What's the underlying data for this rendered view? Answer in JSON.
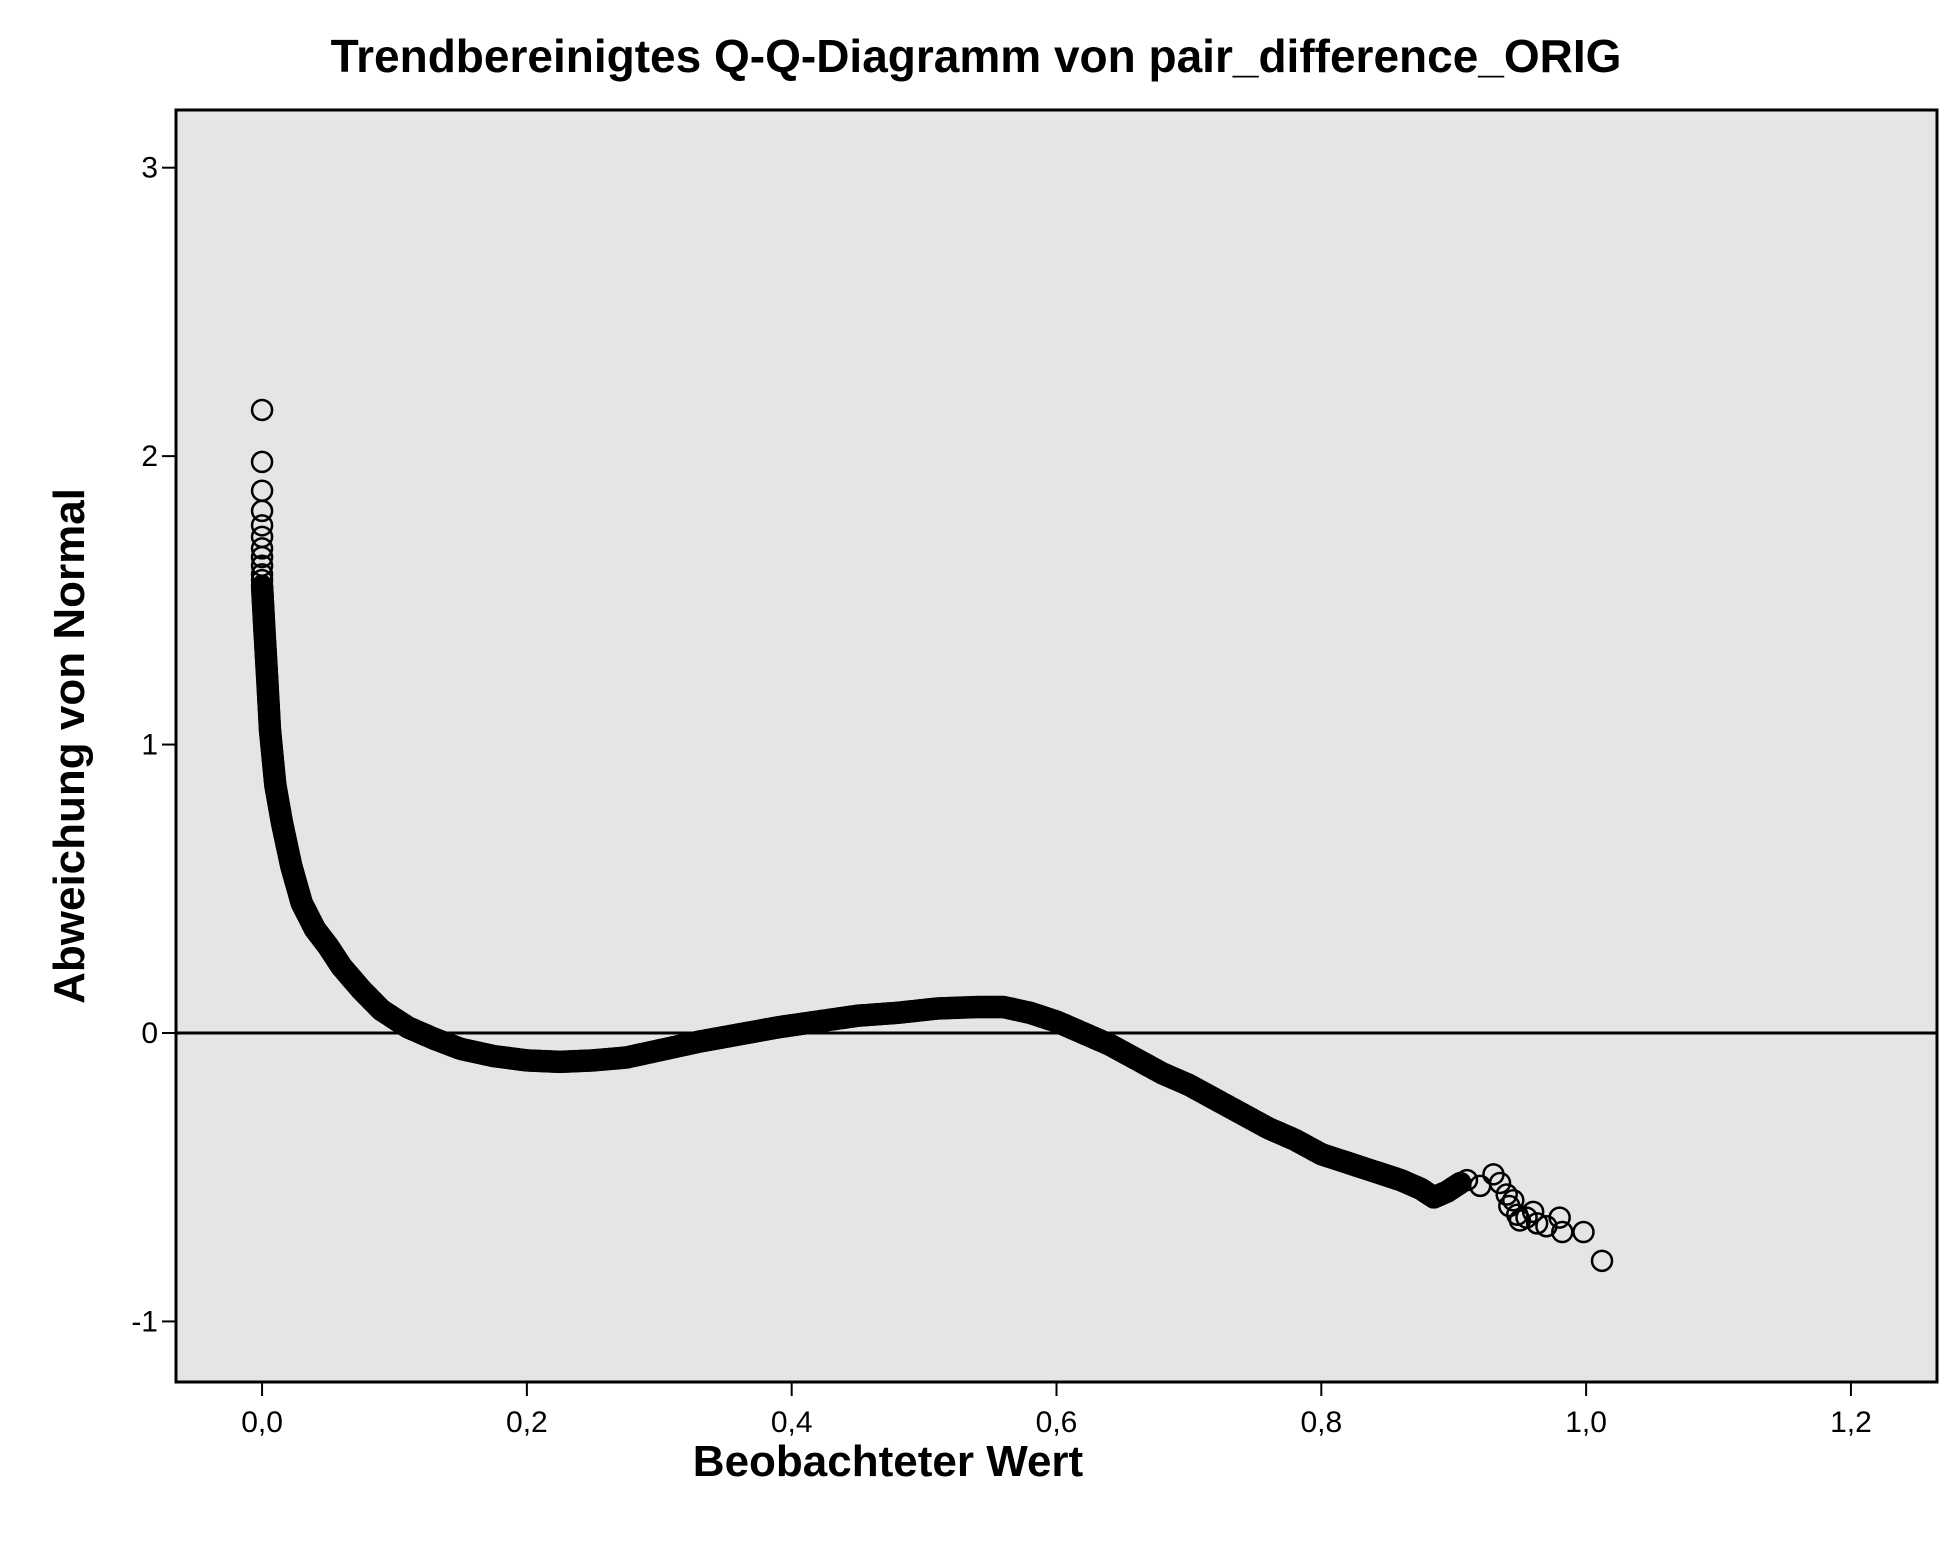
{
  "chart_data": {
    "type": "scatter",
    "title": "Trendbereinigtes Q-Q-Diagramm von pair_difference_ORIG",
    "xlabel": "Beobachteter Wert",
    "ylabel": "Abweichung von Normal",
    "xlim": [
      -0.065,
      1.265
    ],
    "ylim": [
      -1.21,
      3.2
    ],
    "x_ticks": [
      0.0,
      0.2,
      0.4,
      0.6,
      0.8,
      1.0,
      1.2
    ],
    "x_tick_labels": [
      "0,0",
      "0,2",
      "0,4",
      "0,6",
      "0,8",
      "1,0",
      "1,2"
    ],
    "y_ticks": [
      3,
      2,
      1,
      0,
      -1
    ],
    "y_tick_labels": [
      "3",
      "2",
      "1",
      "0",
      "-1"
    ],
    "reference_line": 0,
    "grid": false,
    "legend": "none",
    "colors": {
      "plot_background": "#e5e5e5",
      "marker_stroke": "#000000",
      "reference_line": "#000000"
    },
    "curve_points": [
      {
        "x": 0.0,
        "y": 1.55
      },
      {
        "x": 0.002,
        "y": 1.38
      },
      {
        "x": 0.004,
        "y": 1.22
      },
      {
        "x": 0.006,
        "y": 1.05
      },
      {
        "x": 0.01,
        "y": 0.86
      },
      {
        "x": 0.015,
        "y": 0.73
      },
      {
        "x": 0.022,
        "y": 0.58
      },
      {
        "x": 0.03,
        "y": 0.45
      },
      {
        "x": 0.04,
        "y": 0.36
      },
      {
        "x": 0.05,
        "y": 0.3
      },
      {
        "x": 0.06,
        "y": 0.23
      },
      {
        "x": 0.075,
        "y": 0.15
      },
      {
        "x": 0.09,
        "y": 0.08
      },
      {
        "x": 0.11,
        "y": 0.02
      },
      {
        "x": 0.13,
        "y": -0.02
      },
      {
        "x": 0.15,
        "y": -0.055
      },
      {
        "x": 0.175,
        "y": -0.08
      },
      {
        "x": 0.2,
        "y": -0.095
      },
      {
        "x": 0.225,
        "y": -0.1
      },
      {
        "x": 0.25,
        "y": -0.095
      },
      {
        "x": 0.275,
        "y": -0.085
      },
      {
        "x": 0.3,
        "y": -0.06
      },
      {
        "x": 0.33,
        "y": -0.03
      },
      {
        "x": 0.36,
        "y": -0.005
      },
      {
        "x": 0.39,
        "y": 0.02
      },
      {
        "x": 0.42,
        "y": 0.04
      },
      {
        "x": 0.45,
        "y": 0.06
      },
      {
        "x": 0.48,
        "y": 0.07
      },
      {
        "x": 0.51,
        "y": 0.085
      },
      {
        "x": 0.54,
        "y": 0.09
      },
      {
        "x": 0.56,
        "y": 0.09
      },
      {
        "x": 0.58,
        "y": 0.07
      },
      {
        "x": 0.6,
        "y": 0.04
      },
      {
        "x": 0.62,
        "y": 0.0
      },
      {
        "x": 0.64,
        "y": -0.04
      },
      {
        "x": 0.66,
        "y": -0.09
      },
      {
        "x": 0.68,
        "y": -0.14
      },
      {
        "x": 0.7,
        "y": -0.18
      },
      {
        "x": 0.72,
        "y": -0.23
      },
      {
        "x": 0.74,
        "y": -0.28
      },
      {
        "x": 0.76,
        "y": -0.33
      },
      {
        "x": 0.78,
        "y": -0.37
      },
      {
        "x": 0.8,
        "y": -0.42
      },
      {
        "x": 0.82,
        "y": -0.45
      },
      {
        "x": 0.84,
        "y": -0.48
      },
      {
        "x": 0.86,
        "y": -0.51
      },
      {
        "x": 0.875,
        "y": -0.54
      },
      {
        "x": 0.885,
        "y": -0.57
      },
      {
        "x": 0.895,
        "y": -0.55
      },
      {
        "x": 0.905,
        "y": -0.52
      }
    ],
    "outlier_points": [
      {
        "x": 0.0,
        "y": 2.16
      },
      {
        "x": 0.0,
        "y": 1.98
      },
      {
        "x": 0.0,
        "y": 1.88
      },
      {
        "x": 0.0,
        "y": 1.81
      },
      {
        "x": 0.0,
        "y": 1.76
      },
      {
        "x": 0.0,
        "y": 1.72
      },
      {
        "x": 0.0,
        "y": 1.68
      },
      {
        "x": 0.0,
        "y": 1.65
      },
      {
        "x": 0.0,
        "y": 1.62
      },
      {
        "x": 0.0,
        "y": 1.59
      },
      {
        "x": 0.0,
        "y": 1.57
      },
      {
        "x": 0.91,
        "y": -0.51
      },
      {
        "x": 0.92,
        "y": -0.53
      },
      {
        "x": 0.93,
        "y": -0.49
      },
      {
        "x": 0.935,
        "y": -0.52
      },
      {
        "x": 0.94,
        "y": -0.56
      },
      {
        "x": 0.942,
        "y": -0.6
      },
      {
        "x": 0.945,
        "y": -0.58
      },
      {
        "x": 0.948,
        "y": -0.63
      },
      {
        "x": 0.95,
        "y": -0.65
      },
      {
        "x": 0.955,
        "y": -0.64
      },
      {
        "x": 0.96,
        "y": -0.62
      },
      {
        "x": 0.963,
        "y": -0.66
      },
      {
        "x": 0.97,
        "y": -0.67
      },
      {
        "x": 0.98,
        "y": -0.64
      },
      {
        "x": 0.982,
        "y": -0.69
      },
      {
        "x": 0.998,
        "y": -0.69
      },
      {
        "x": 1.012,
        "y": -0.79
      }
    ]
  }
}
